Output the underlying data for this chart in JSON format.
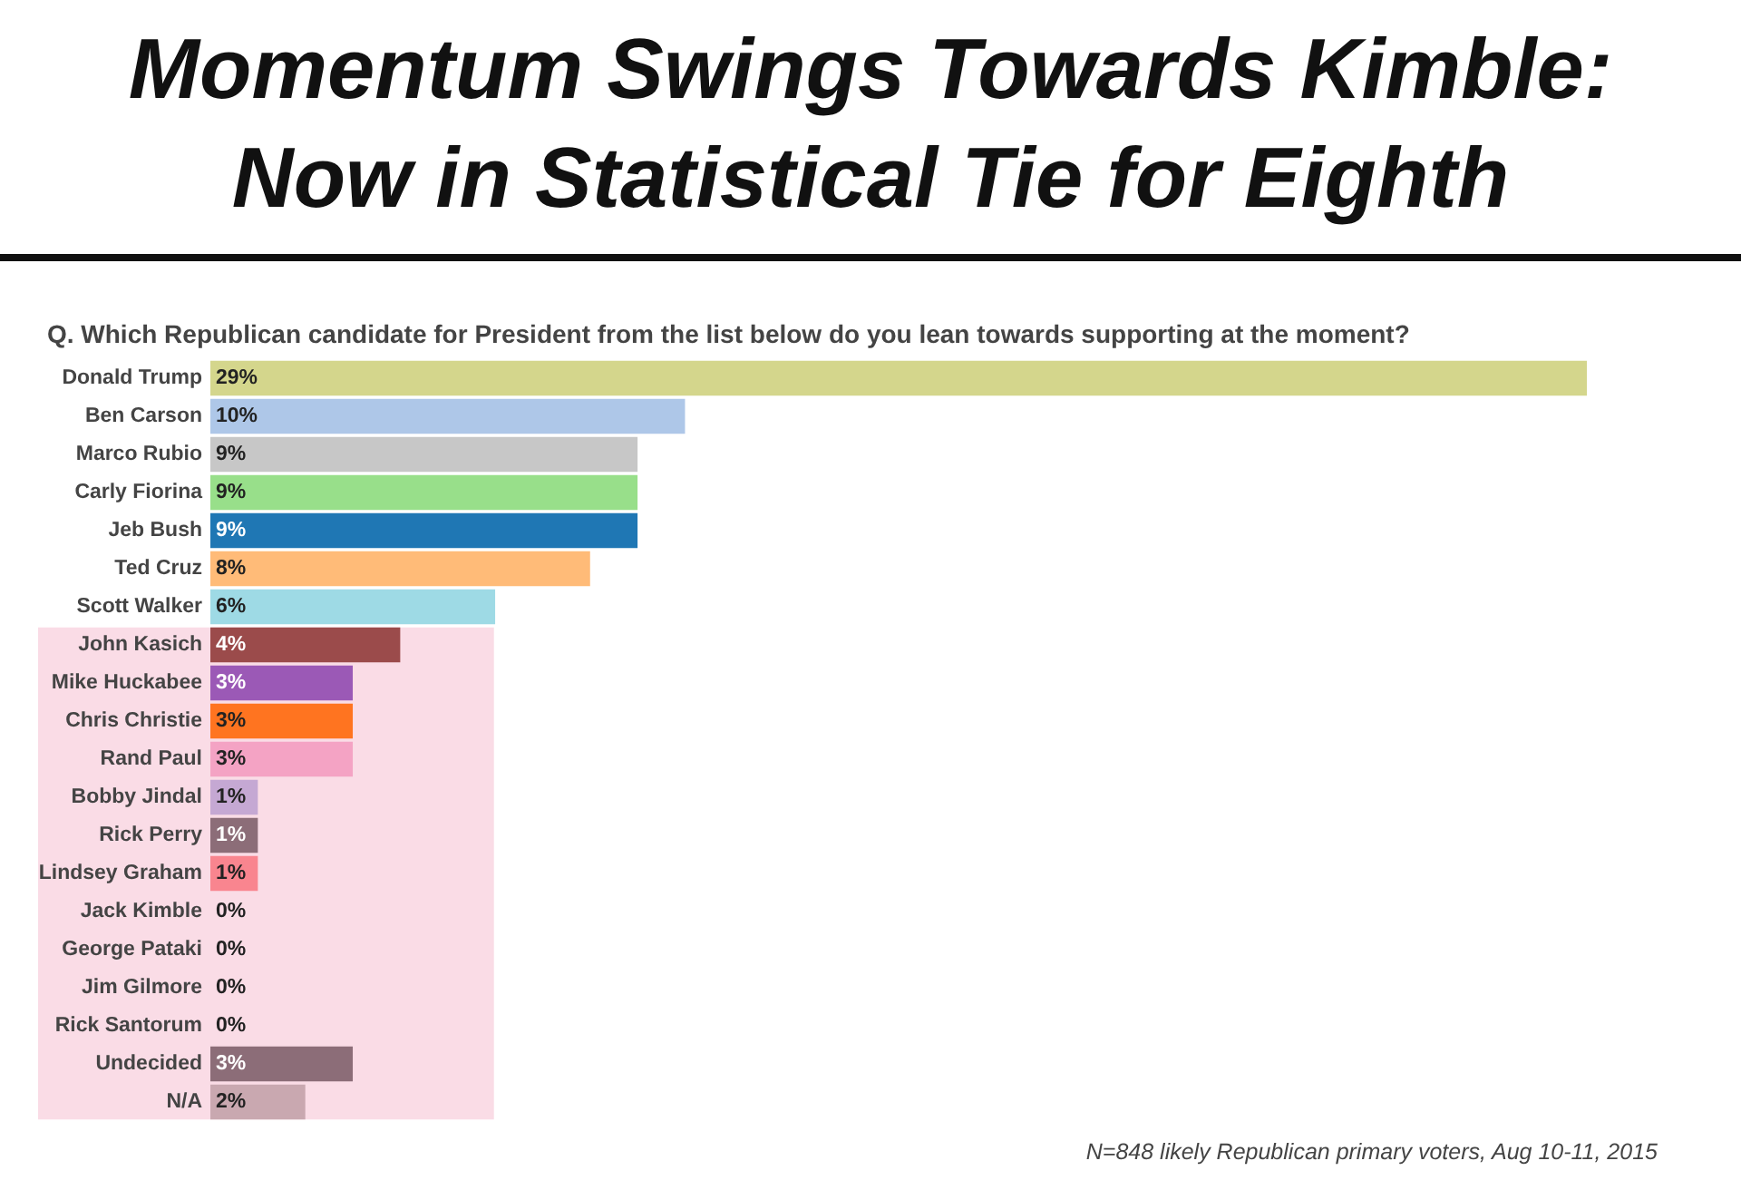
{
  "chart_data": {
    "type": "bar",
    "orientation": "horizontal",
    "title": "Momentum Swings Towards Kimble: Now in Statistical Tie for Eighth",
    "subtitle": "Q. Which Republican candidate for President from the list below do you lean towards supporting at the moment?",
    "categories": [
      "Donald Trump",
      "Ben Carson",
      "Marco Rubio",
      "Carly Fiorina",
      "Jeb Bush",
      "Ted Cruz",
      "Scott Walker",
      "John Kasich",
      "Mike Huckabee",
      "Chris Christie",
      "Rand Paul",
      "Bobby Jindal",
      "Rick Perry",
      "Lindsey Graham",
      "Jack Kimble",
      "George Pataki",
      "Jim Gilmore",
      "Rick Santorum",
      "Undecided",
      "N/A"
    ],
    "values": [
      29,
      10,
      9,
      9,
      9,
      8,
      6,
      4,
      3,
      3,
      3,
      1,
      1,
      1,
      0,
      0,
      0,
      0,
      3,
      2
    ],
    "value_labels": [
      "29%",
      "10%",
      "9%",
      "9%",
      "9%",
      "8%",
      "6%",
      "4%",
      "3%",
      "3%",
      "3%",
      "1%",
      "1%",
      "1%",
      "0%",
      "0%",
      "0%",
      "0%",
      "3%",
      "2%"
    ],
    "colors": [
      "#d4d68c",
      "#aec7e8",
      "#c7c7c7",
      "#98df8a",
      "#1f77b4",
      "#ffbb78",
      "#9edae5",
      "#9b4b4b",
      "#9b59b6",
      "#ff7420",
      "#f4a3c4",
      "#c5a8d3",
      "#8c6d78",
      "#f9858f",
      "#d62728",
      "#d62728",
      "#d62728",
      "#d62728",
      "#8c6d78",
      "#c9a8b0"
    ],
    "bands": [
      {
        "axis": "y",
        "from": "John Kasich",
        "to": "N/A",
        "color": "#fadce6"
      }
    ],
    "annotations": [
      "N=848 likely Republican primary voters, Aug 10-11, 2015"
    ]
  }
}
